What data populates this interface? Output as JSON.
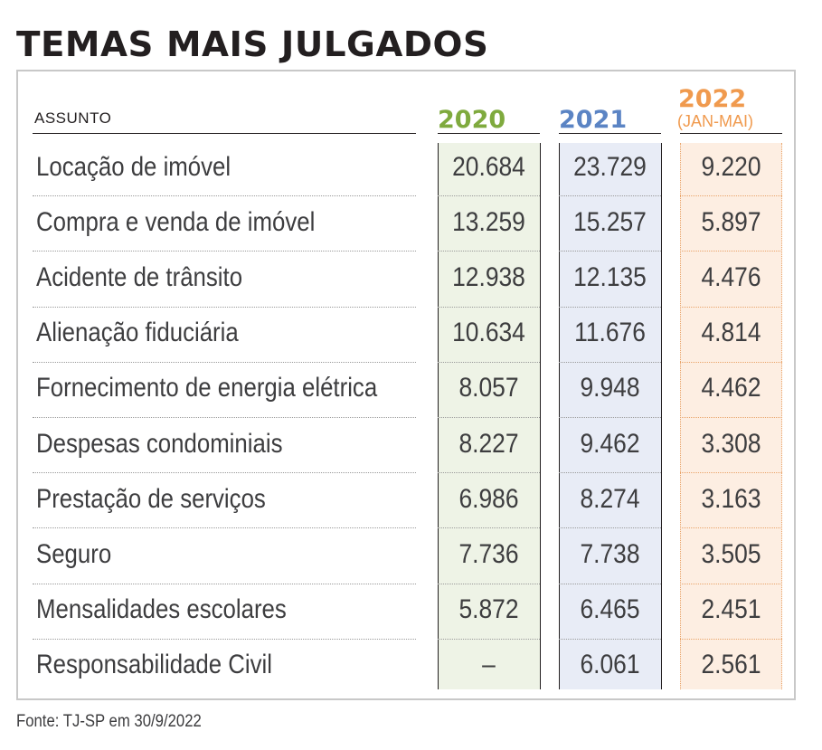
{
  "title": "TEMAS MAIS JULGADOS",
  "source": "Fonte: TJ-SP em 30/9/2022",
  "colors": {
    "y2020": "#7faa3e",
    "y2021": "#5b84c4",
    "y2022": "#f09a4e",
    "bg2020": "#eef3e6",
    "bg2021": "#e8ecf6",
    "bg2022": "#fdeee2"
  },
  "chart_data": {
    "type": "table",
    "title": "TEMAS MAIS JULGADOS",
    "columns": {
      "subject": "ASSUNTO",
      "y2020": "2020",
      "y2021": "2021",
      "y2022": "2022",
      "y2022_note": "(JAN-MAI)"
    },
    "rows": [
      {
        "subject": "Locação de imóvel",
        "y2020": "20.684",
        "y2021": "23.729",
        "y2022": "9.220"
      },
      {
        "subject": "Compra e venda de imóvel",
        "y2020": "13.259",
        "y2021": "15.257",
        "y2022": "5.897"
      },
      {
        "subject": "Acidente de trânsito",
        "y2020": "12.938",
        "y2021": "12.135",
        "y2022": "4.476"
      },
      {
        "subject": "Alienação fiduciária",
        "y2020": "10.634",
        "y2021": "11.676",
        "y2022": "4.814"
      },
      {
        "subject": "Fornecimento de energia elétrica",
        "y2020": "8.057",
        "y2021": "9.948",
        "y2022": "4.462"
      },
      {
        "subject": "Despesas condominiais",
        "y2020": "8.227",
        "y2021": "9.462",
        "y2022": "3.308"
      },
      {
        "subject": "Prestação de serviços",
        "y2020": "6.986",
        "y2021": "8.274",
        "y2022": "3.163"
      },
      {
        "subject": "Seguro",
        "y2020": "7.736",
        "y2021": "7.738",
        "y2022": "3.505"
      },
      {
        "subject": "Mensalidades escolares",
        "y2020": "5.872",
        "y2021": "6.465",
        "y2022": "2.451"
      },
      {
        "subject": "Responsabilidade Civil",
        "y2020": "–",
        "y2021": "6.061",
        "y2022": "2.561"
      }
    ]
  }
}
